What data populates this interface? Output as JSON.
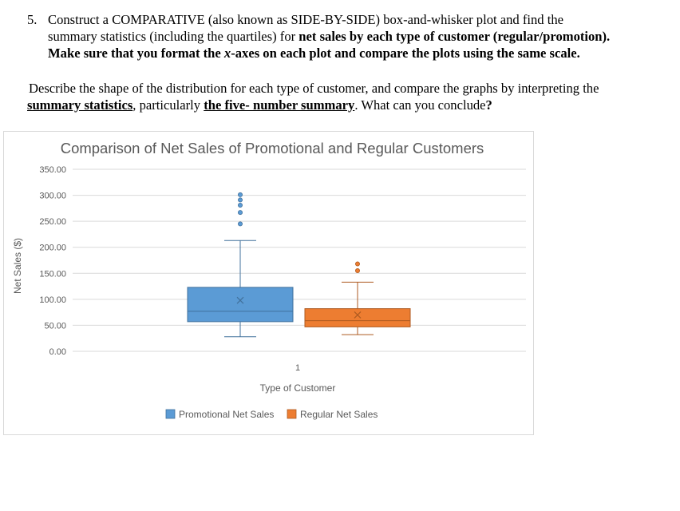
{
  "question": {
    "number": "5.",
    "line1_a": "Construct a COMPARATIVE (also known as SIDE-BY-SIDE) box-and-whisker plot and find the",
    "line2_a": "summary statistics (including the quartiles) for ",
    "line2_bold": "net sales by each type of customer (regular/promotion).",
    "line3_a": "Make sure that you format the ",
    "line3_italic": "x",
    "line3_b": "-axes on each plot and compare the plots using the same scale."
  },
  "describe": {
    "line1": "Describe the shape of the distribution for each type of customer, and compare the graphs by interpreting the",
    "link1": "summary statistics",
    "sep": ", particularly ",
    "link2": "the five- number summary",
    "end_a": ".  What can you conclude",
    "end_q": "?"
  },
  "chart_data": {
    "type": "box",
    "title": "Comparison of Net Sales of Promotional and Regular Customers",
    "xlabel": "Type of Customer",
    "ylabel": "Net Sales ($)",
    "categories": [
      "1"
    ],
    "ylim": [
      0,
      350
    ],
    "yticks": [
      "0.00",
      "50.00",
      "100.00",
      "150.00",
      "200.00",
      "250.00",
      "300.00",
      "350.00"
    ],
    "grid": true,
    "legend_position": "bottom",
    "series": [
      {
        "name": "Promotional Net Sales",
        "color": "#5b9bd5",
        "min": 28,
        "q1": 57,
        "median": 77,
        "q3": 123,
        "max": 213,
        "mean": 98,
        "outliers": [
          245,
          267,
          281,
          291,
          301
        ]
      },
      {
        "name": "Regular Net Sales",
        "color": "#ed7d31",
        "min": 32,
        "q1": 47,
        "median": 59,
        "q3": 82,
        "max": 133,
        "mean": 70,
        "outliers": [
          155,
          168
        ]
      }
    ]
  }
}
